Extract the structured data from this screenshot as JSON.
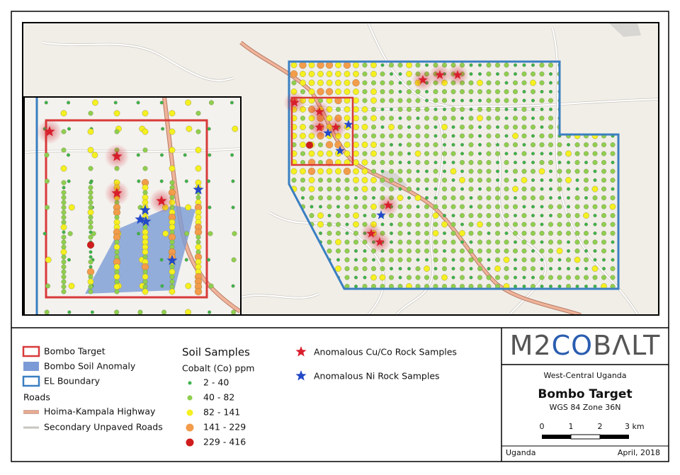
{
  "legend": {
    "items": [
      "Bombo Target",
      "Bombo Soil Anomaly",
      "EL Boundary"
    ],
    "roads_title": "Roads",
    "roads": [
      "Hoima-Kampala Highway",
      "Secondary Unpaved Roads"
    ],
    "soil": {
      "title": "Soil Samples",
      "subtitle": "Cobalt (Co) ppm",
      "classes": [
        "2 - 40",
        "40 - 82",
        "82 - 141",
        "141 - 229",
        "229 - 416"
      ]
    },
    "rock": [
      "Anomalous Cu/Co Rock Samples",
      "Anomalous Ni Rock Samples"
    ]
  },
  "title_block": {
    "logo": [
      "M2",
      "CO",
      "BΛLT"
    ],
    "region": "West-Central Uganda",
    "title": "Bombo Target",
    "projection": "WGS 84 Zone 36N",
    "scale_labels": [
      "0",
      "1",
      "2",
      "3 km"
    ],
    "country": "Uganda",
    "date": "April, 2018"
  }
}
